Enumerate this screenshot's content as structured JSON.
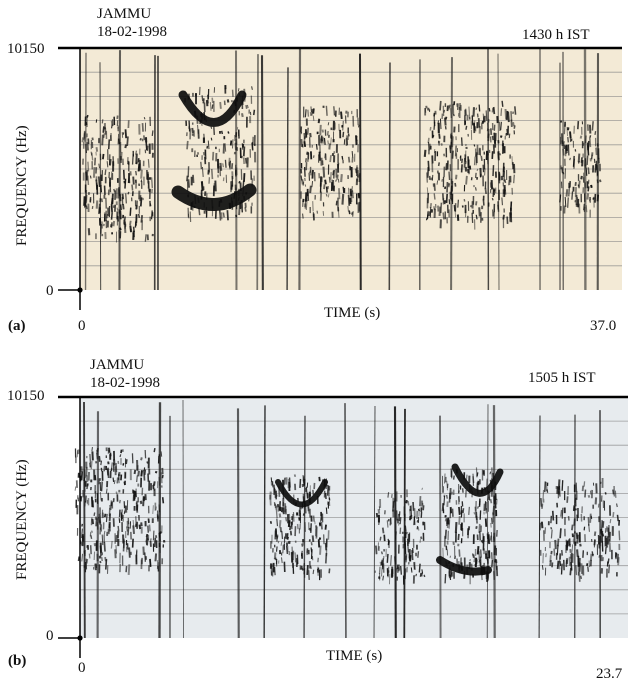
{
  "panels": [
    {
      "id": "a",
      "station": "JAMMU",
      "date": "18-02-1998",
      "time_ist": "1430 h IST",
      "y_top_label": "10150",
      "y_bottom_label": "0",
      "ylabel": "FREQUENCY (Hz)",
      "xlabel": "TIME (s)",
      "x_start_label": "0",
      "x_end_label": "37.0",
      "panel_label": "(a)",
      "background": "#f3ead6"
    },
    {
      "id": "b",
      "station": "JAMMU",
      "date": "18-02-1998",
      "time_ist": "1505 h IST",
      "y_top_label": "10150",
      "y_bottom_label": "0",
      "ylabel": "FREQUENCY (Hz)",
      "xlabel": "TIME (s)",
      "x_start_label": "0",
      "x_end_label": "23.7",
      "panel_label": "(b)",
      "background": "#e7ebee"
    }
  ]
}
